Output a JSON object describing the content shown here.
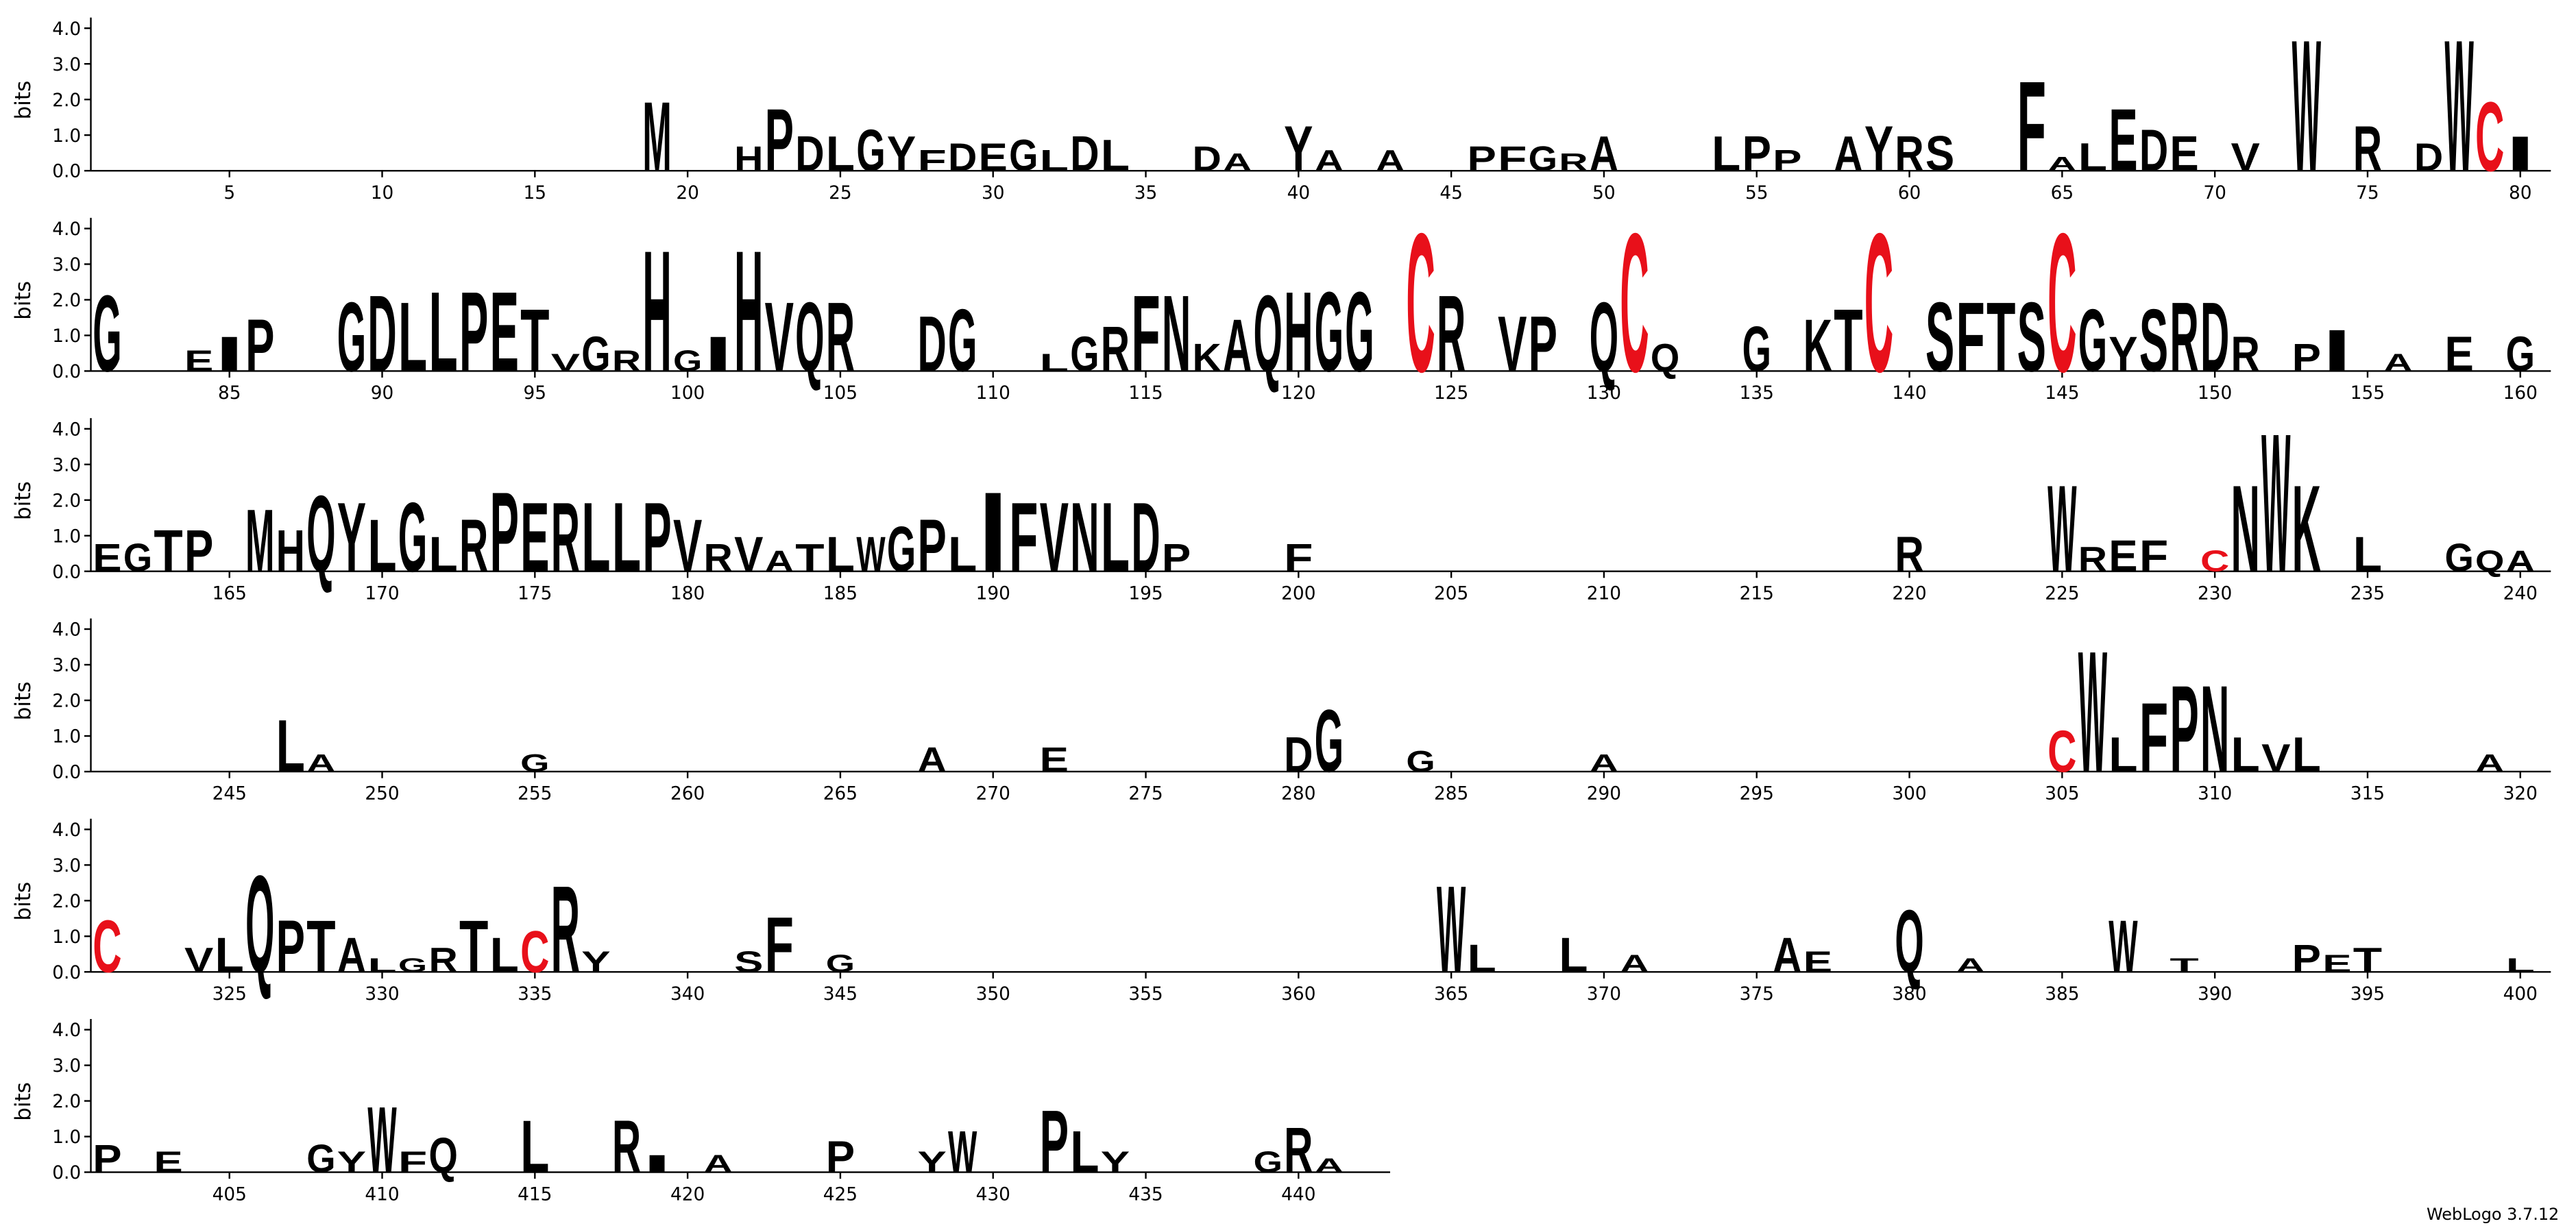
{
  "chart_data": {
    "type": "logo",
    "ylabel": "bits",
    "footer": "WebLogo 3.7.12",
    "ylim": [
      0,
      4.3
    ],
    "yticks": [
      {
        "value": 0,
        "label": "0.0"
      },
      {
        "value": 1,
        "label": "1.0"
      },
      {
        "value": 2,
        "label": "2.0"
      },
      {
        "value": 3,
        "label": "3.0"
      },
      {
        "value": 4,
        "label": "4.0"
      }
    ],
    "rows": [
      [
        1,
        80
      ],
      [
        81,
        160
      ],
      [
        161,
        240
      ],
      [
        241,
        320
      ],
      [
        321,
        400
      ],
      [
        401,
        442
      ]
    ],
    "xticks": [
      5,
      10,
      15,
      20,
      25,
      30,
      35,
      40,
      45,
      50,
      55,
      60,
      65,
      70,
      75,
      80,
      85,
      90,
      95,
      100,
      105,
      110,
      115,
      120,
      125,
      130,
      135,
      140,
      145,
      150,
      155,
      160,
      165,
      170,
      175,
      180,
      185,
      190,
      195,
      200,
      205,
      210,
      215,
      220,
      225,
      230,
      235,
      240,
      245,
      250,
      255,
      260,
      265,
      270,
      275,
      280,
      285,
      290,
      295,
      300,
      305,
      310,
      315,
      320,
      325,
      330,
      335,
      340,
      345,
      350,
      355,
      360,
      365,
      370,
      375,
      380,
      385,
      390,
      395,
      400,
      405,
      410,
      415,
      420,
      425,
      430,
      435,
      440
    ],
    "color": "#000000",
    "letter_colors": {
      "C": "#e8101a"
    },
    "stacks": [
      {
        "pos": 19,
        "letter": "M",
        "bits": 2.0
      },
      {
        "pos": 22,
        "letter": "H",
        "bits": 0.7
      },
      {
        "pos": 23,
        "letter": "P",
        "bits": 1.8
      },
      {
        "pos": 24,
        "letter": "D",
        "bits": 1.0
      },
      {
        "pos": 25,
        "letter": "L",
        "bits": 1.0
      },
      {
        "pos": 26,
        "letter": "G",
        "bits": 1.2
      },
      {
        "pos": 27,
        "letter": "Y",
        "bits": 1.0
      },
      {
        "pos": 28,
        "letter": "F",
        "bits": 0.6
      },
      {
        "pos": 29,
        "letter": "D",
        "bits": 0.8
      },
      {
        "pos": 30,
        "letter": "E",
        "bits": 0.8
      },
      {
        "pos": 31,
        "letter": "G",
        "bits": 0.9
      },
      {
        "pos": 32,
        "letter": "L",
        "bits": 0.6
      },
      {
        "pos": 33,
        "letter": "D",
        "bits": 1.0
      },
      {
        "pos": 34,
        "letter": "L",
        "bits": 0.9
      },
      {
        "pos": 37,
        "letter": "D",
        "bits": 0.7
      },
      {
        "pos": 38,
        "letter": "A",
        "bits": 0.5
      },
      {
        "pos": 40,
        "letter": "Y",
        "bits": 1.3
      },
      {
        "pos": 41,
        "letter": "A",
        "bits": 0.6
      },
      {
        "pos": 43,
        "letter": "A",
        "bits": 0.6
      },
      {
        "pos": 46,
        "letter": "P",
        "bits": 0.7
      },
      {
        "pos": 47,
        "letter": "F",
        "bits": 0.7
      },
      {
        "pos": 48,
        "letter": "G",
        "bits": 0.7
      },
      {
        "pos": 49,
        "letter": "R",
        "bits": 0.5
      },
      {
        "pos": 50,
        "letter": "A",
        "bits": 1.0
      },
      {
        "pos": 54,
        "letter": "L",
        "bits": 1.0
      },
      {
        "pos": 55,
        "letter": "P",
        "bits": 1.0
      },
      {
        "pos": 56,
        "letter": "P",
        "bits": 0.6
      },
      {
        "pos": 58,
        "letter": "A",
        "bits": 1.0
      },
      {
        "pos": 59,
        "letter": "Y",
        "bits": 1.3
      },
      {
        "pos": 60,
        "letter": "R",
        "bits": 1.0
      },
      {
        "pos": 61,
        "letter": "S",
        "bits": 1.0
      },
      {
        "pos": 64,
        "letter": "F",
        "bits": 2.6
      },
      {
        "pos": 65,
        "letter": "A",
        "bits": 0.4
      },
      {
        "pos": 66,
        "letter": "L",
        "bits": 0.8
      },
      {
        "pos": 67,
        "letter": "E",
        "bits": 1.8
      },
      {
        "pos": 68,
        "letter": "D",
        "bits": 1.2
      },
      {
        "pos": 69,
        "letter": "E",
        "bits": 1.0
      },
      {
        "pos": 71,
        "letter": "V",
        "bits": 0.8
      },
      {
        "pos": 73,
        "letter": "W",
        "bits": 3.8
      },
      {
        "pos": 75,
        "letter": "R",
        "bits": 1.3
      },
      {
        "pos": 77,
        "letter": "D",
        "bits": 0.8
      },
      {
        "pos": 78,
        "letter": "W",
        "bits": 3.8
      },
      {
        "pos": 79,
        "letter": "C",
        "bits": 2.0
      },
      {
        "pos": 80,
        "letter": "I",
        "bits": 1.0
      },
      {
        "pos": 81,
        "letter": "G",
        "bits": 2.2
      },
      {
        "pos": 84,
        "letter": "E",
        "bits": 0.6
      },
      {
        "pos": 85,
        "letter": "I",
        "bits": 1.0
      },
      {
        "pos": 86,
        "letter": "P",
        "bits": 1.5
      },
      {
        "pos": 89,
        "letter": "G",
        "bits": 2.0
      },
      {
        "pos": 90,
        "letter": "D",
        "bits": 2.2
      },
      {
        "pos": 91,
        "letter": "L",
        "bits": 2.0
      },
      {
        "pos": 92,
        "letter": "L",
        "bits": 2.3
      },
      {
        "pos": 93,
        "letter": "P",
        "bits": 2.3
      },
      {
        "pos": 94,
        "letter": "E",
        "bits": 2.3
      },
      {
        "pos": 95,
        "letter": "T",
        "bits": 1.8
      },
      {
        "pos": 96,
        "letter": "V",
        "bits": 0.5
      },
      {
        "pos": 97,
        "letter": "G",
        "bits": 1.0
      },
      {
        "pos": 98,
        "letter": "R",
        "bits": 0.6
      },
      {
        "pos": 99,
        "letter": "H",
        "bits": 3.5
      },
      {
        "pos": 100,
        "letter": "G",
        "bits": 0.6
      },
      {
        "pos": 101,
        "letter": "I",
        "bits": 1.0
      },
      {
        "pos": 102,
        "letter": "H",
        "bits": 3.5
      },
      {
        "pos": 103,
        "letter": "V",
        "bits": 2.0
      },
      {
        "pos": 104,
        "letter": "Q",
        "bits": 2.0
      },
      {
        "pos": 105,
        "letter": "R",
        "bits": 2.0
      },
      {
        "pos": 108,
        "letter": "D",
        "bits": 1.6
      },
      {
        "pos": 109,
        "letter": "G",
        "bits": 1.8
      },
      {
        "pos": 112,
        "letter": "L",
        "bits": 0.5
      },
      {
        "pos": 113,
        "letter": "G",
        "bits": 1.0
      },
      {
        "pos": 114,
        "letter": "R",
        "bits": 1.3
      },
      {
        "pos": 115,
        "letter": "F",
        "bits": 2.2
      },
      {
        "pos": 116,
        "letter": "N",
        "bits": 2.2
      },
      {
        "pos": 117,
        "letter": "K",
        "bits": 0.8
      },
      {
        "pos": 118,
        "letter": "A",
        "bits": 1.5
      },
      {
        "pos": 119,
        "letter": "Q",
        "bits": 2.2
      },
      {
        "pos": 120,
        "letter": "H",
        "bits": 2.3
      },
      {
        "pos": 121,
        "letter": "G",
        "bits": 2.3
      },
      {
        "pos": 122,
        "letter": "G",
        "bits": 2.3
      },
      {
        "pos": 124,
        "letter": "C",
        "bits": 4.0
      },
      {
        "pos": 125,
        "letter": "R",
        "bits": 2.2
      },
      {
        "pos": 127,
        "letter": "V",
        "bits": 1.6
      },
      {
        "pos": 128,
        "letter": "P",
        "bits": 1.6
      },
      {
        "pos": 130,
        "letter": "Q",
        "bits": 2.0
      },
      {
        "pos": 131,
        "letter": "C",
        "bits": 4.0
      },
      {
        "pos": 132,
        "letter": "Q",
        "bits": 0.8
      },
      {
        "pos": 135,
        "letter": "G",
        "bits": 1.3
      },
      {
        "pos": 137,
        "letter": "K",
        "bits": 1.5
      },
      {
        "pos": 138,
        "letter": "T",
        "bits": 1.8
      },
      {
        "pos": 139,
        "letter": "C",
        "bits": 4.0
      },
      {
        "pos": 141,
        "letter": "S",
        "bits": 2.0
      },
      {
        "pos": 142,
        "letter": "F",
        "bits": 2.0
      },
      {
        "pos": 143,
        "letter": "T",
        "bits": 2.0
      },
      {
        "pos": 144,
        "letter": "S",
        "bits": 2.0
      },
      {
        "pos": 145,
        "letter": "C",
        "bits": 4.0
      },
      {
        "pos": 146,
        "letter": "G",
        "bits": 1.8
      },
      {
        "pos": 147,
        "letter": "Y",
        "bits": 1.0
      },
      {
        "pos": 148,
        "letter": "S",
        "bits": 1.8
      },
      {
        "pos": 149,
        "letter": "R",
        "bits": 2.0
      },
      {
        "pos": 150,
        "letter": "D",
        "bits": 2.0
      },
      {
        "pos": 151,
        "letter": "R",
        "bits": 1.0
      },
      {
        "pos": 153,
        "letter": "P",
        "bits": 0.8
      },
      {
        "pos": 154,
        "letter": "I",
        "bits": 1.2
      },
      {
        "pos": 156,
        "letter": "A",
        "bits": 0.5
      },
      {
        "pos": 158,
        "letter": "E",
        "bits": 1.0
      },
      {
        "pos": 160,
        "letter": "G",
        "bits": 1.0
      },
      {
        "pos": 161,
        "letter": "E",
        "bits": 0.8
      },
      {
        "pos": 162,
        "letter": "G",
        "bits": 0.8
      },
      {
        "pos": 163,
        "letter": "T",
        "bits": 1.2
      },
      {
        "pos": 164,
        "letter": "P",
        "bits": 1.2
      },
      {
        "pos": 166,
        "letter": "M",
        "bits": 1.8
      },
      {
        "pos": 167,
        "letter": "H",
        "bits": 1.2
      },
      {
        "pos": 168,
        "letter": "Q",
        "bits": 2.2
      },
      {
        "pos": 169,
        "letter": "Y",
        "bits": 2.0
      },
      {
        "pos": 170,
        "letter": "L",
        "bits": 1.5
      },
      {
        "pos": 171,
        "letter": "G",
        "bits": 2.0
      },
      {
        "pos": 172,
        "letter": "L",
        "bits": 1.0
      },
      {
        "pos": 173,
        "letter": "R",
        "bits": 1.5
      },
      {
        "pos": 174,
        "letter": "P",
        "bits": 2.3
      },
      {
        "pos": 175,
        "letter": "E",
        "bits": 2.0
      },
      {
        "pos": 176,
        "letter": "R",
        "bits": 2.0
      },
      {
        "pos": 177,
        "letter": "L",
        "bits": 2.0
      },
      {
        "pos": 178,
        "letter": "L",
        "bits": 2.0
      },
      {
        "pos": 179,
        "letter": "P",
        "bits": 2.0
      },
      {
        "pos": 180,
        "letter": "V",
        "bits": 1.5
      },
      {
        "pos": 181,
        "letter": "R",
        "bits": 0.8
      },
      {
        "pos": 182,
        "letter": "V",
        "bits": 1.0
      },
      {
        "pos": 183,
        "letter": "A",
        "bits": 0.6
      },
      {
        "pos": 184,
        "letter": "T",
        "bits": 0.8
      },
      {
        "pos": 185,
        "letter": "L",
        "bits": 1.0
      },
      {
        "pos": 186,
        "letter": "W",
        "bits": 1.0
      },
      {
        "pos": 187,
        "letter": "G",
        "bits": 1.3
      },
      {
        "pos": 188,
        "letter": "P",
        "bits": 1.5
      },
      {
        "pos": 189,
        "letter": "L",
        "bits": 1.0
      },
      {
        "pos": 190,
        "letter": "I",
        "bits": 2.3
      },
      {
        "pos": 191,
        "letter": "F",
        "bits": 2.0
      },
      {
        "pos": 192,
        "letter": "V",
        "bits": 2.0
      },
      {
        "pos": 193,
        "letter": "N",
        "bits": 2.0
      },
      {
        "pos": 194,
        "letter": "L",
        "bits": 2.0
      },
      {
        "pos": 195,
        "letter": "D",
        "bits": 2.0
      },
      {
        "pos": 196,
        "letter": "P",
        "bits": 0.8
      },
      {
        "pos": 200,
        "letter": "F",
        "bits": 0.8
      },
      {
        "pos": 220,
        "letter": "R",
        "bits": 1.0
      },
      {
        "pos": 225,
        "letter": "W",
        "bits": 2.5
      },
      {
        "pos": 226,
        "letter": "R",
        "bits": 0.7
      },
      {
        "pos": 227,
        "letter": "E",
        "bits": 0.9
      },
      {
        "pos": 228,
        "letter": "F",
        "bits": 0.9
      },
      {
        "pos": 230,
        "letter": "C",
        "bits": 0.6
      },
      {
        "pos": 231,
        "letter": "N",
        "bits": 2.5
      },
      {
        "pos": 232,
        "letter": "W",
        "bits": 4.0
      },
      {
        "pos": 233,
        "letter": "K",
        "bits": 2.5
      },
      {
        "pos": 235,
        "letter": "L",
        "bits": 1.0
      },
      {
        "pos": 238,
        "letter": "G",
        "bits": 0.8
      },
      {
        "pos": 239,
        "letter": "Q",
        "bits": 0.6
      },
      {
        "pos": 240,
        "letter": "A",
        "bits": 0.6
      },
      {
        "pos": 247,
        "letter": "L",
        "bits": 1.5
      },
      {
        "pos": 248,
        "letter": "A",
        "bits": 0.5
      },
      {
        "pos": 255,
        "letter": "G",
        "bits": 0.5
      },
      {
        "pos": 268,
        "letter": "A",
        "bits": 0.7
      },
      {
        "pos": 272,
        "letter": "E",
        "bits": 0.7
      },
      {
        "pos": 280,
        "letter": "D",
        "bits": 1.0
      },
      {
        "pos": 281,
        "letter": "G",
        "bits": 1.8
      },
      {
        "pos": 284,
        "letter": "G",
        "bits": 0.6
      },
      {
        "pos": 290,
        "letter": "A",
        "bits": 0.5
      },
      {
        "pos": 305,
        "letter": "C",
        "bits": 1.2
      },
      {
        "pos": 306,
        "letter": "W",
        "bits": 3.5
      },
      {
        "pos": 307,
        "letter": "L",
        "bits": 1.0
      },
      {
        "pos": 308,
        "letter": "F",
        "bits": 2.0
      },
      {
        "pos": 309,
        "letter": "P",
        "bits": 2.5
      },
      {
        "pos": 310,
        "letter": "N",
        "bits": 2.5
      },
      {
        "pos": 311,
        "letter": "L",
        "bits": 1.0
      },
      {
        "pos": 312,
        "letter": "V",
        "bits": 0.8
      },
      {
        "pos": 313,
        "letter": "L",
        "bits": 1.0
      },
      {
        "pos": 319,
        "letter": "A",
        "bits": 0.5
      },
      {
        "pos": 321,
        "letter": "C",
        "bits": 1.5
      },
      {
        "pos": 324,
        "letter": "V",
        "bits": 0.7
      },
      {
        "pos": 325,
        "letter": "L",
        "bits": 1.0
      },
      {
        "pos": 326,
        "letter": "Q",
        "bits": 2.8
      },
      {
        "pos": 327,
        "letter": "P",
        "bits": 1.5
      },
      {
        "pos": 328,
        "letter": "T",
        "bits": 1.5
      },
      {
        "pos": 329,
        "letter": "A",
        "bits": 1.0
      },
      {
        "pos": 330,
        "letter": "L",
        "bits": 0.4
      },
      {
        "pos": 331,
        "letter": "G",
        "bits": 0.4
      },
      {
        "pos": 332,
        "letter": "R",
        "bits": 0.7
      },
      {
        "pos": 333,
        "letter": "T",
        "bits": 1.5
      },
      {
        "pos": 334,
        "letter": "L",
        "bits": 1.0
      },
      {
        "pos": 335,
        "letter": "C",
        "bits": 1.2
      },
      {
        "pos": 336,
        "letter": "R",
        "bits": 2.5
      },
      {
        "pos": 337,
        "letter": "Y",
        "bits": 0.6
      },
      {
        "pos": 342,
        "letter": "S",
        "bits": 0.6
      },
      {
        "pos": 343,
        "letter": "F",
        "bits": 1.6
      },
      {
        "pos": 345,
        "letter": "G",
        "bits": 0.5
      },
      {
        "pos": 365,
        "letter": "W",
        "bits": 2.5
      },
      {
        "pos": 366,
        "letter": "L",
        "bits": 0.8
      },
      {
        "pos": 369,
        "letter": "L",
        "bits": 1.0
      },
      {
        "pos": 371,
        "letter": "A",
        "bits": 0.5
      },
      {
        "pos": 376,
        "letter": "A",
        "bits": 1.0
      },
      {
        "pos": 377,
        "letter": "E",
        "bits": 0.6
      },
      {
        "pos": 380,
        "letter": "Q",
        "bits": 1.8
      },
      {
        "pos": 382,
        "letter": "A",
        "bits": 0.4
      },
      {
        "pos": 387,
        "letter": "W",
        "bits": 1.5
      },
      {
        "pos": 389,
        "letter": "T",
        "bits": 0.4
      },
      {
        "pos": 393,
        "letter": "P",
        "bits": 0.8
      },
      {
        "pos": 394,
        "letter": "E",
        "bits": 0.5
      },
      {
        "pos": 395,
        "letter": "T",
        "bits": 0.7
      },
      {
        "pos": 400,
        "letter": "L",
        "bits": 0.4
      },
      {
        "pos": 401,
        "letter": "P",
        "bits": 0.8
      },
      {
        "pos": 403,
        "letter": "E",
        "bits": 0.6
      },
      {
        "pos": 408,
        "letter": "G",
        "bits": 0.8
      },
      {
        "pos": 409,
        "letter": "Y",
        "bits": 0.6
      },
      {
        "pos": 410,
        "letter": "W",
        "bits": 1.9
      },
      {
        "pos": 411,
        "letter": "F",
        "bits": 0.6
      },
      {
        "pos": 412,
        "letter": "Q",
        "bits": 1.0
      },
      {
        "pos": 415,
        "letter": "L",
        "bits": 1.5
      },
      {
        "pos": 418,
        "letter": "R",
        "bits": 1.5
      },
      {
        "pos": 419,
        "letter": "I",
        "bits": 0.5
      },
      {
        "pos": 421,
        "letter": "A",
        "bits": 0.5
      },
      {
        "pos": 425,
        "letter": "P",
        "bits": 0.9
      },
      {
        "pos": 428,
        "letter": "Y",
        "bits": 0.6
      },
      {
        "pos": 429,
        "letter": "W",
        "bits": 1.2
      },
      {
        "pos": 432,
        "letter": "P",
        "bits": 1.8
      },
      {
        "pos": 433,
        "letter": "L",
        "bits": 1.2
      },
      {
        "pos": 434,
        "letter": "Y",
        "bits": 0.6
      },
      {
        "pos": 439,
        "letter": "G",
        "bits": 0.6
      },
      {
        "pos": 440,
        "letter": "R",
        "bits": 1.3
      },
      {
        "pos": 441,
        "letter": "A",
        "bits": 0.4
      }
    ]
  }
}
